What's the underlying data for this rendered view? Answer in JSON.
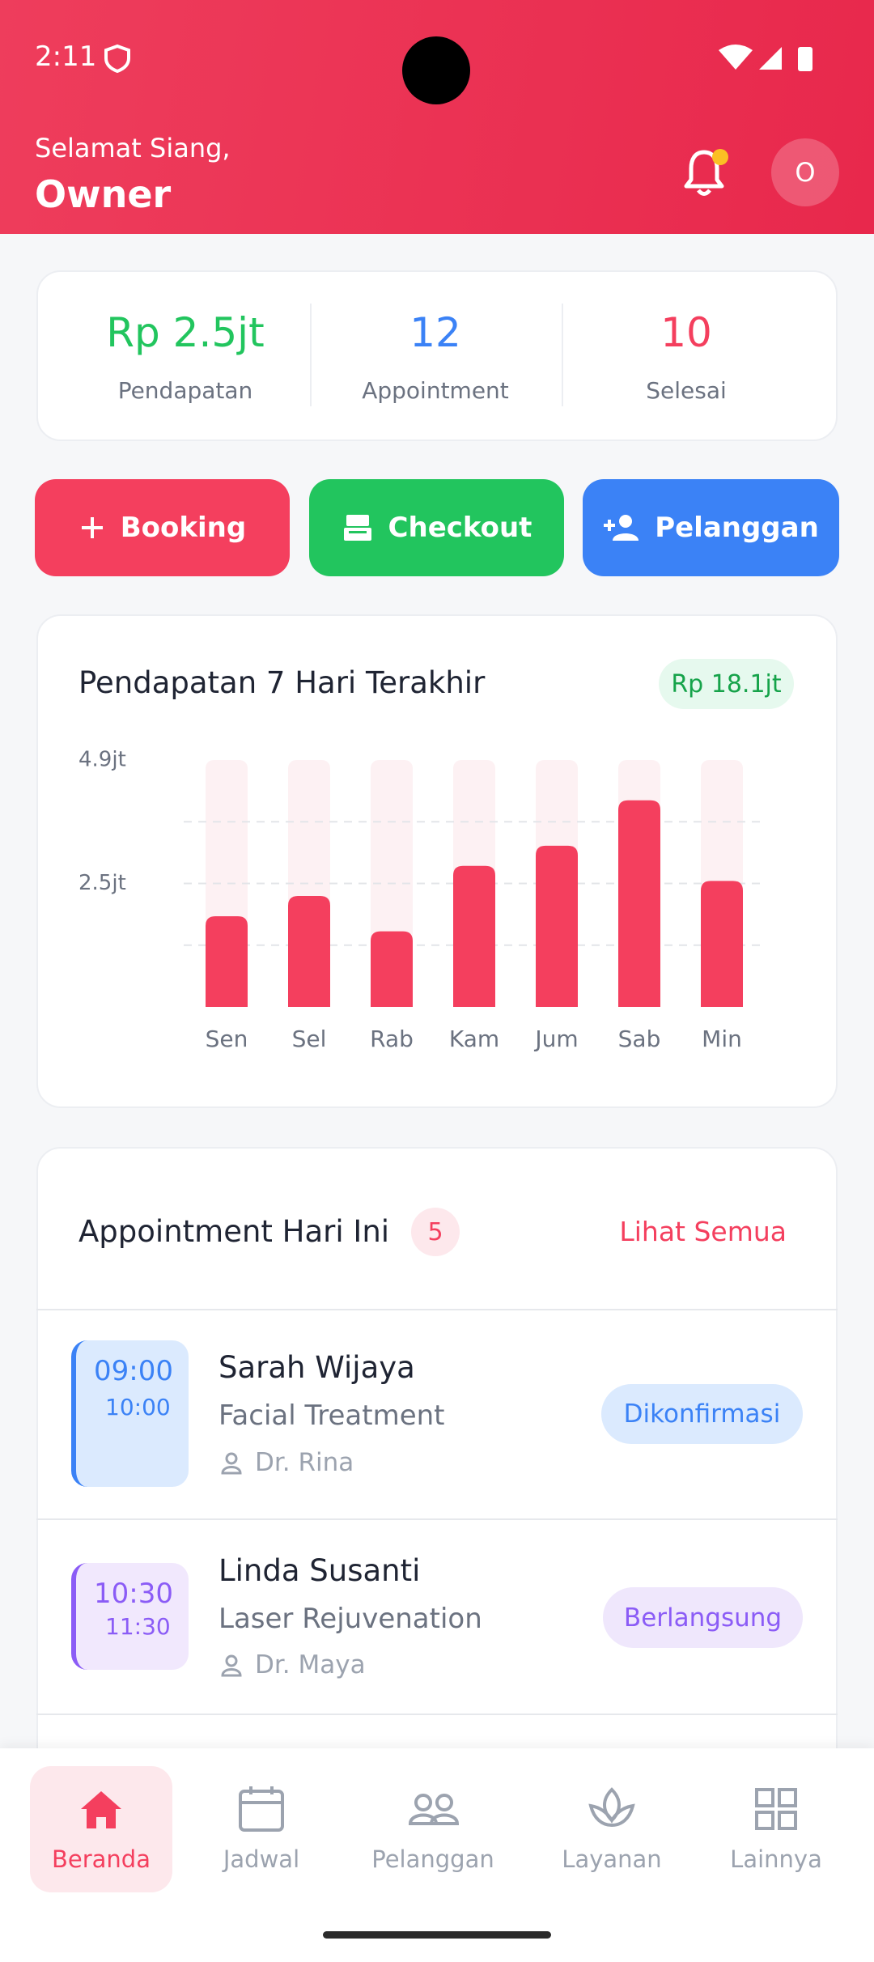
{
  "status_bar": {
    "time": "2:11"
  },
  "header": {
    "greeting": "Selamat Siang,",
    "name": "Owner",
    "avatar": "O"
  },
  "stats": [
    {
      "value": "Rp 2.5jt",
      "label": "Pendapatan"
    },
    {
      "value": 12,
      "label": "Appointment"
    },
    {
      "value": 10,
      "label": "Selesai"
    }
  ],
  "actions": [
    "Booking",
    "Checkout",
    "Pelanggan"
  ],
  "chart_data": {
    "type": "bar",
    "title": "Pendapatan 7 Hari Terakhir",
    "total_label": "Rp 18.1jt",
    "categories": [
      "Sen",
      "Sel",
      "Rab",
      "Kam",
      "Jum",
      "Sab",
      "Min"
    ],
    "values": [
      1.8,
      2.2,
      1.5,
      2.8,
      3.2,
      4.1,
      2.5
    ],
    "color": "#f43f5e",
    "ylim": [
      0,
      4.9
    ],
    "yticks": [
      {
        "value": 4.9,
        "label": "4.9jt"
      },
      {
        "value": 3.675,
        "label": null
      },
      {
        "value": 2.45,
        "label": "2.5jt"
      },
      {
        "value": 1.225,
        "label": null
      }
    ]
  },
  "appointments": {
    "title": "Appointment Hari Ini",
    "count": 5,
    "link": "Lihat Semua",
    "items": [
      {
        "start": "09:00",
        "end": "10:00",
        "name": "Sarah Wijaya",
        "service": "Facial Treatment",
        "doctor": "Dr. Rina",
        "status": "Dikonfirmasi"
      },
      {
        "start": "10:30",
        "end": "11:30",
        "name": "Linda Susanti",
        "service": "Laser Rejuvenation",
        "doctor": "Dr. Maya",
        "status": "Berlangsung"
      }
    ]
  },
  "nav": [
    "Beranda",
    "Jadwal",
    "Pelanggan",
    "Layanan",
    "Lainnya"
  ]
}
